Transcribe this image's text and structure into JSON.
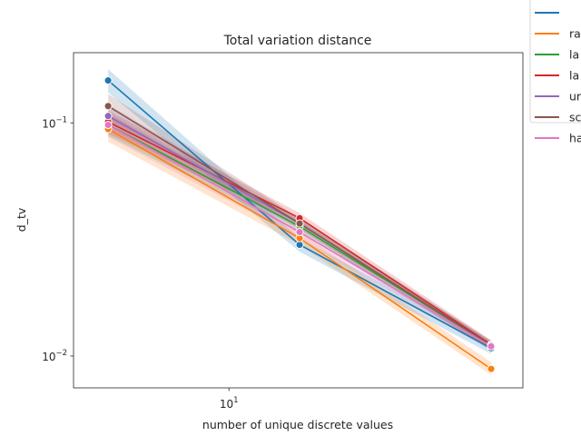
{
  "chart_data": {
    "type": "line",
    "title": "Total variation distance",
    "xlabel": "number of unique discrete values",
    "ylabel": "d_tv",
    "xscale": "log",
    "yscale": "log",
    "x": [
      5,
      15,
      45
    ],
    "xlim": [
      4.1,
      54
    ],
    "ylim": [
      0.0073,
      0.2
    ],
    "xticks": [
      {
        "value": 10,
        "label": "10^1"
      }
    ],
    "yticks": [
      {
        "value": 0.1,
        "label": "10^-1"
      },
      {
        "value": 0.01,
        "label": "10^-2"
      }
    ],
    "grid": false,
    "legend_position": "top-right, outside the plot",
    "series": [
      {
        "name": "",
        "color": "#1f77b4",
        "values": [
          0.152,
          0.03,
          0.0108
        ],
        "lower": [
          0.135,
          0.028,
          0.0102
        ],
        "upper": [
          0.17,
          0.032,
          0.0114
        ]
      },
      {
        "name": "ra",
        "color": "#ff7f0e",
        "values": [
          0.094,
          0.032,
          0.0088
        ],
        "lower": [
          0.083,
          0.03,
          0.0083
        ],
        "upper": [
          0.105,
          0.034,
          0.0094
        ]
      },
      {
        "name": "la",
        "color": "#2ca02c",
        "values": [
          0.098,
          0.036,
          0.0111
        ],
        "lower": [
          0.088,
          0.034,
          0.0106
        ],
        "upper": [
          0.11,
          0.038,
          0.0116
        ]
      },
      {
        "name": "la",
        "color": "#d62728",
        "values": [
          0.101,
          0.039,
          0.0112
        ],
        "lower": [
          0.09,
          0.037,
          0.0107
        ],
        "upper": [
          0.113,
          0.041,
          0.0117
        ]
      },
      {
        "name": "ur",
        "color": "#9467bd",
        "values": [
          0.107,
          0.037,
          0.0111
        ],
        "lower": [
          0.095,
          0.035,
          0.0106
        ],
        "upper": [
          0.12,
          0.039,
          0.0116
        ]
      },
      {
        "name": "sc",
        "color": "#8c564b",
        "values": [
          0.118,
          0.037,
          0.0111
        ],
        "lower": [
          0.104,
          0.035,
          0.0106
        ],
        "upper": [
          0.133,
          0.039,
          0.0116
        ]
      },
      {
        "name": "ha",
        "color": "#e377c2",
        "values": [
          0.098,
          0.034,
          0.011
        ],
        "lower": [
          0.087,
          0.032,
          0.0105
        ],
        "upper": [
          0.11,
          0.036,
          0.0115
        ]
      }
    ]
  }
}
